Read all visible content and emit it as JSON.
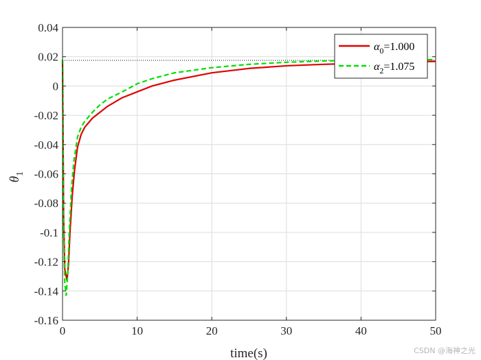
{
  "chart_data": {
    "type": "line",
    "xlabel": "time(s)",
    "ylabel": {
      "symbol": "θ",
      "subscript": "1"
    },
    "xlim": [
      0,
      50
    ],
    "ylim": [
      -0.16,
      0.04
    ],
    "xticks": [
      "0",
      "10",
      "20",
      "30",
      "40",
      "50"
    ],
    "yticks": [
      "0.04",
      "0.02",
      "0",
      "-0.02",
      "-0.04",
      "-0.06",
      "-0.08",
      "-0.1",
      "-0.12",
      "-0.14",
      "-0.16"
    ],
    "grid": true,
    "legend_position": "top-right",
    "reference_line": {
      "y": 0.0175,
      "style": "dotted"
    },
    "series": [
      {
        "name": {
          "symbol": "α",
          "subscript": "0",
          "suffix": "=1.000"
        },
        "color": "#e00000",
        "dash": "solid",
        "x": [
          0,
          0.15,
          0.3,
          0.6,
          0.8,
          1.0,
          1.3,
          1.6,
          2.0,
          2.5,
          3.0,
          4.0,
          5.0,
          6.0,
          8.0,
          10.0,
          12.0,
          15.0,
          20.0,
          25.0,
          30.0,
          35.0,
          40.0,
          45.0,
          50.0
        ],
        "y": [
          0.018,
          -0.09,
          -0.125,
          -0.133,
          -0.122,
          -0.1,
          -0.075,
          -0.058,
          -0.042,
          -0.033,
          -0.028,
          -0.022,
          -0.018,
          -0.014,
          -0.008,
          -0.004,
          0.0,
          0.004,
          0.009,
          0.012,
          0.0138,
          0.0148,
          0.0155,
          0.0162,
          0.0168
        ]
      },
      {
        "name": {
          "symbol": "α",
          "subscript": "2",
          "suffix": "=1.075"
        },
        "color": "#00e000",
        "dash": "dashed",
        "x": [
          0,
          0.15,
          0.3,
          0.5,
          0.7,
          0.9,
          1.2,
          1.5,
          2.0,
          2.5,
          3.0,
          4.0,
          5.0,
          6.0,
          8.0,
          10.0,
          12.0,
          15.0,
          20.0,
          25.0,
          30.0,
          35.0,
          40.0,
          45.0,
          50.0
        ],
        "y": [
          0.018,
          -0.1,
          -0.135,
          -0.143,
          -0.128,
          -0.1,
          -0.07,
          -0.052,
          -0.035,
          -0.028,
          -0.024,
          -0.018,
          -0.013,
          -0.009,
          -0.004,
          0.0015,
          0.005,
          0.009,
          0.0125,
          0.0148,
          0.0162,
          0.0171,
          0.0176,
          0.0179,
          0.018
        ]
      }
    ]
  },
  "watermark": "CSDN @海神之光"
}
